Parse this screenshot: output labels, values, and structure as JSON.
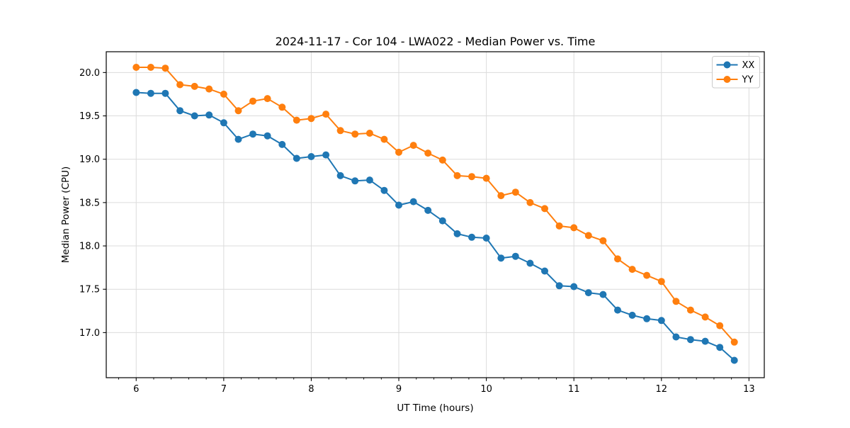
{
  "chart_data": {
    "type": "line",
    "title": "2024-11-17 - Cor 104 - LWA022 - Median Power vs. Time",
    "xlabel": "UT Time (hours)",
    "ylabel": "Median Power (CPU)",
    "xlim": [
      5.658,
      13.175
    ],
    "ylim": [
      16.48,
      20.24
    ],
    "x_ticks": [
      6,
      7,
      8,
      9,
      10,
      11,
      12,
      13
    ],
    "y_ticks": [
      17.0,
      17.5,
      18.0,
      18.5,
      19.0,
      19.5,
      20.0
    ],
    "x_minor_step": 0.2,
    "grid": true,
    "background": "#ffffff",
    "grid_color": "#dcdcdc",
    "spine_color": "#000000",
    "legend_position": "upper right",
    "x": [
      6.0,
      6.167,
      6.333,
      6.5,
      6.667,
      6.833,
      7.0,
      7.167,
      7.333,
      7.5,
      7.667,
      7.833,
      8.0,
      8.167,
      8.333,
      8.5,
      8.667,
      8.833,
      9.0,
      9.167,
      9.333,
      9.5,
      9.667,
      9.833,
      10.0,
      10.167,
      10.333,
      10.5,
      10.667,
      10.833,
      11.0,
      11.167,
      11.333,
      11.5,
      11.667,
      11.833,
      12.0,
      12.167,
      12.333,
      12.5,
      12.667,
      12.833
    ],
    "series": [
      {
        "name": "XX",
        "color": "#1f77b4",
        "values": [
          19.77,
          19.76,
          19.76,
          19.56,
          19.5,
          19.51,
          19.42,
          19.23,
          19.29,
          19.27,
          19.17,
          19.01,
          19.03,
          19.05,
          18.81,
          18.75,
          18.76,
          18.64,
          18.47,
          18.51,
          18.41,
          18.29,
          18.14,
          18.1,
          18.09,
          17.86,
          17.88,
          17.8,
          17.71,
          17.54,
          17.53,
          17.46,
          17.44,
          17.26,
          17.2,
          17.16,
          17.14,
          16.95,
          16.92,
          16.9,
          16.83,
          16.68
        ]
      },
      {
        "name": "YY",
        "color": "#ff7f0e",
        "values": [
          20.06,
          20.06,
          20.05,
          19.86,
          19.84,
          19.81,
          19.75,
          19.56,
          19.67,
          19.7,
          19.6,
          19.45,
          19.47,
          19.52,
          19.33,
          19.29,
          19.3,
          19.23,
          19.08,
          19.16,
          19.07,
          18.99,
          18.81,
          18.8,
          18.78,
          18.58,
          18.62,
          18.5,
          18.43,
          18.23,
          18.21,
          18.12,
          18.06,
          17.85,
          17.73,
          17.66,
          17.59,
          17.36,
          17.26,
          17.18,
          17.08,
          16.89
        ]
      }
    ]
  }
}
